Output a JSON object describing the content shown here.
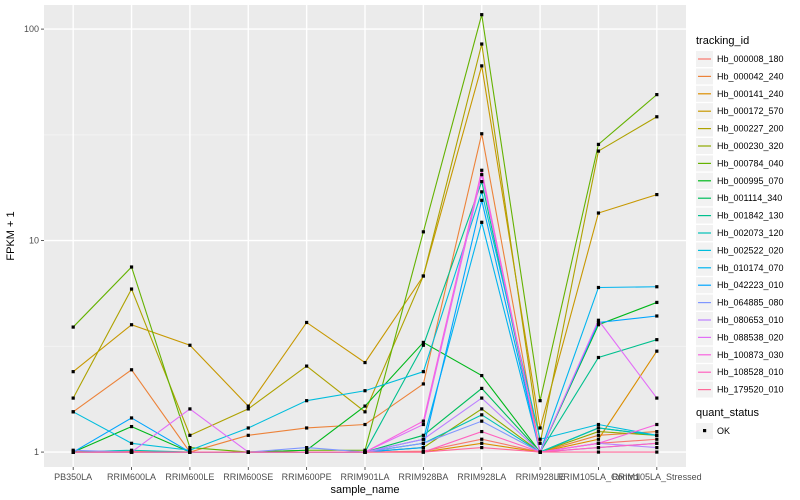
{
  "chart_data": {
    "type": "line",
    "xlabel": "sample_name",
    "ylabel": "FPKM + 1",
    "y_scale": "log10",
    "ylim": [
      0.85,
      130
    ],
    "y_ticks": [
      {
        "value": 1,
        "label": "1"
      },
      {
        "value": 10,
        "label": "10"
      },
      {
        "value": 100,
        "label": "100"
      }
    ],
    "categories": [
      "PB350LA",
      "RRIM600LA",
      "RRIM600LE",
      "RRIM600SE",
      "RRIM600PE",
      "RRIM901LA",
      "RRIM928BA",
      "RRIM928LA",
      "RRIM928LE",
      "RRIM105LA_Control",
      "RRIM105LA_Stressed"
    ],
    "grid": true,
    "background": "#ebebeb",
    "point_color": "#000000",
    "legend": {
      "title": "tracking_id",
      "position": "right",
      "items": [
        {
          "name": "Hb_000008_180",
          "color": "#F8766D"
        },
        {
          "name": "Hb_000042_240",
          "color": "#EC8239"
        },
        {
          "name": "Hb_000141_240",
          "color": "#DB8E00"
        },
        {
          "name": "Hb_000172_570",
          "color": "#C79800"
        },
        {
          "name": "Hb_000227_200",
          "color": "#AEA200"
        },
        {
          "name": "Hb_000230_320",
          "color": "#8FAA00"
        },
        {
          "name": "Hb_000784_040",
          "color": "#64B200"
        },
        {
          "name": "Hb_000995_070",
          "color": "#00B81B"
        },
        {
          "name": "Hb_001114_340",
          "color": "#00BD5C"
        },
        {
          "name": "Hb_001842_130",
          "color": "#00C08E"
        },
        {
          "name": "Hb_002073_120",
          "color": "#00C1B7"
        },
        {
          "name": "Hb_002522_020",
          "color": "#00BDDC"
        },
        {
          "name": "Hb_010174_070",
          "color": "#00B4EF"
        },
        {
          "name": "Hb_042223_010",
          "color": "#00A5FF"
        },
        {
          "name": "Hb_064885_080",
          "color": "#7F96FF"
        },
        {
          "name": "Hb_080653_010",
          "color": "#BC81FF"
        },
        {
          "name": "Hb_088538_020",
          "color": "#E26EF7"
        },
        {
          "name": "Hb_100873_030",
          "color": "#F863DF"
        },
        {
          "name": "Hb_108528_010",
          "color": "#FF62BF"
        },
        {
          "name": "Hb_179520_010",
          "color": "#FF6A9A"
        }
      ]
    },
    "shape_legend": {
      "title": "quant_status",
      "items": [
        "OK"
      ]
    },
    "series": [
      {
        "name": "Hb_000008_180",
        "color": "#F8766D",
        "values": [
          1.01,
          1.01,
          1.0,
          1.0,
          1.0,
          1.0,
          1.01,
          1.15,
          1.0,
          1.1,
          1.15
        ]
      },
      {
        "name": "Hb_000042_240",
        "color": "#EC8239",
        "values": [
          1.55,
          2.45,
          1.0,
          1.2,
          1.3,
          1.35,
          2.1,
          32,
          1.0,
          1.2,
          1.25
        ]
      },
      {
        "name": "Hb_000141_240",
        "color": "#DB8E00",
        "values": [
          1.0,
          1.0,
          1.0,
          1.0,
          1.0,
          1.0,
          1.0,
          1.1,
          1.0,
          1.15,
          3.0
        ]
      },
      {
        "name": "Hb_000172_570",
        "color": "#C79800",
        "values": [
          2.4,
          4.0,
          3.2,
          1.65,
          4.1,
          2.65,
          6.8,
          67,
          1.3,
          13.5,
          16.5
        ]
      },
      {
        "name": "Hb_000227_200",
        "color": "#AEA200",
        "values": [
          1.8,
          5.9,
          1.2,
          1.6,
          2.55,
          1.55,
          6.8,
          85,
          1.1,
          26.5,
          38.5
        ]
      },
      {
        "name": "Hb_000230_320",
        "color": "#8FAA00",
        "values": [
          1.0,
          1.0,
          1.0,
          1.0,
          1.0,
          1.0,
          1.05,
          1.6,
          1.0,
          1.25,
          1.2
        ]
      },
      {
        "name": "Hb_000784_040",
        "color": "#64B200",
        "values": [
          3.9,
          7.5,
          1.05,
          1.0,
          1.02,
          1.02,
          11.0,
          117,
          1.75,
          28.5,
          49
        ]
      },
      {
        "name": "Hb_000995_070",
        "color": "#00B81B",
        "values": [
          1.0,
          1.32,
          1.0,
          1.0,
          1.02,
          1.65,
          3.3,
          2.3,
          1.0,
          4.0,
          5.1
        ]
      },
      {
        "name": "Hb_001114_340",
        "color": "#00BD5C",
        "values": [
          1.0,
          1.0,
          1.0,
          1.0,
          1.0,
          1.0,
          1.2,
          2.0,
          1.0,
          1.3,
          1.2
        ]
      },
      {
        "name": "Hb_001842_130",
        "color": "#00C08E",
        "values": [
          1.0,
          1.0,
          1.0,
          1.0,
          1.0,
          1.0,
          3.2,
          19,
          1.0,
          2.8,
          3.4
        ]
      },
      {
        "name": "Hb_002073_120",
        "color": "#00C1B7",
        "values": [
          1.0,
          1.02,
          1.0,
          1.0,
          1.0,
          1.0,
          1.1,
          1.5,
          1.0,
          1.3,
          1.2
        ]
      },
      {
        "name": "Hb_002522_020",
        "color": "#00BDDC",
        "values": [
          1.55,
          1.1,
          1.02,
          1.3,
          1.75,
          1.95,
          2.4,
          17,
          1.15,
          1.35,
          1.2
        ]
      },
      {
        "name": "Hb_010174_070",
        "color": "#00B4EF",
        "values": [
          1.0,
          1.0,
          1.0,
          1.0,
          1.0,
          1.0,
          1.15,
          12.2,
          1.0,
          6.0,
          6.05
        ]
      },
      {
        "name": "Hb_042223_010",
        "color": "#00A5FF",
        "values": [
          1.0,
          1.45,
          1.0,
          1.0,
          1.0,
          1.0,
          1.05,
          15.5,
          1.0,
          4.1,
          4.4
        ]
      },
      {
        "name": "Hb_064885_080",
        "color": "#7F96FF",
        "values": [
          1.02,
          1.0,
          1.0,
          1.0,
          1.05,
          1.0,
          1.1,
          1.4,
          1.0,
          1.05,
          1.1
        ]
      },
      {
        "name": "Hb_080653_010",
        "color": "#BC81FF",
        "values": [
          1.0,
          1.0,
          1.0,
          1.0,
          1.0,
          1.0,
          1.15,
          1.8,
          1.0,
          1.1,
          1.05
        ]
      },
      {
        "name": "Hb_088538_020",
        "color": "#E26EF7",
        "values": [
          1.0,
          1.0,
          1.6,
          1.0,
          1.0,
          1.0,
          1.35,
          20.5,
          1.0,
          4.2,
          1.8
        ]
      },
      {
        "name": "Hb_100873_030",
        "color": "#F863DF",
        "values": [
          1.0,
          1.0,
          1.0,
          1.0,
          1.0,
          1.0,
          1.4,
          21.5,
          1.0,
          1.1,
          1.35
        ]
      },
      {
        "name": "Hb_108528_010",
        "color": "#FF62BF",
        "values": [
          1.0,
          1.0,
          1.0,
          1.0,
          1.0,
          1.0,
          1.0,
          1.25,
          1.0,
          1.05,
          1.1
        ]
      },
      {
        "name": "Hb_179520_010",
        "color": "#FF6A9A",
        "values": [
          1.0,
          1.0,
          1.0,
          1.0,
          1.0,
          1.0,
          1.0,
          1.05,
          1.0,
          1.0,
          1.0
        ]
      }
    ]
  }
}
